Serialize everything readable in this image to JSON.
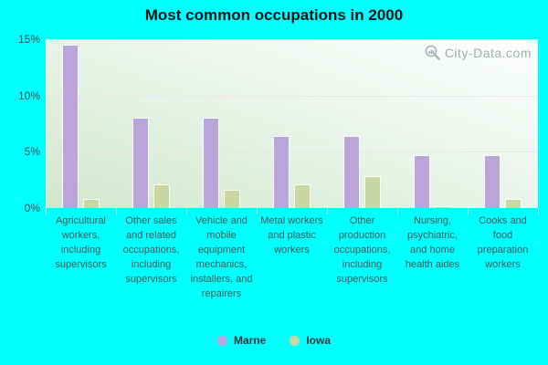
{
  "title": "Most common occupations in 2000",
  "watermark": "City-Data.com",
  "colors": {
    "background": "#00ffff",
    "marne_bar": "#b9a5da",
    "iowa_bar": "#cbd7a2",
    "bar_border": "#fafffa",
    "plot_gradient_top_right": "#fdfefd",
    "plot_gradient_bottom_left": "#d0e8ca",
    "title_text": "#151515",
    "axis_text": "#485555",
    "watermark_text": "#8f979c"
  },
  "chart_data": {
    "type": "bar",
    "title": "Most common occupations in 2000",
    "categories": [
      "Agricultural workers, including supervisors",
      "Other sales and related occupations, including supervisors",
      "Vehicle and mobile equipment mechanics, installers, and repairers",
      "Metal workers and plastic workers",
      "Other production occupations, including supervisors",
      "Nursing, psychiatric, and home health aides",
      "Cooks and food preparation workers"
    ],
    "series": [
      {
        "name": "Marne",
        "color": "#b9a5da",
        "values": [
          14.5,
          8.0,
          8.0,
          6.4,
          6.4,
          4.7,
          4.7
        ]
      },
      {
        "name": "Iowa",
        "color": "#cbd7a2",
        "values": [
          0.8,
          2.1,
          1.6,
          2.1,
          2.8,
          0.2,
          0.8
        ]
      }
    ],
    "xlabel": "",
    "ylabel": "",
    "ylim": [
      0,
      15
    ],
    "yticks_values": [
      0,
      5,
      10,
      15
    ],
    "yticks": [
      "0%",
      "5%",
      "10%",
      "15%"
    ],
    "gridlines_at": [
      5,
      10
    ],
    "grid": true,
    "legend_position": "bottom-center",
    "units": "%"
  }
}
